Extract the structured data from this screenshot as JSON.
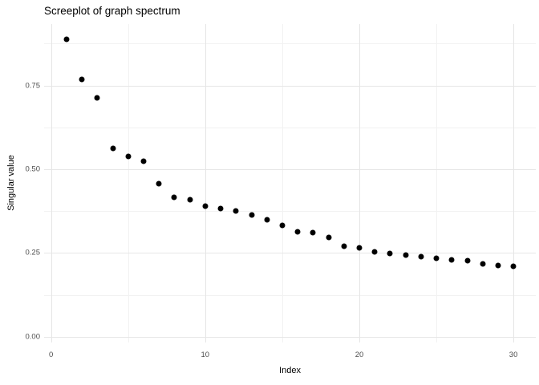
{
  "chart_data": {
    "type": "scatter",
    "title": "Screeplot of graph spectrum",
    "xlabel": "Index",
    "ylabel": "Singular value",
    "x": [
      1,
      2,
      3,
      4,
      5,
      6,
      7,
      8,
      9,
      10,
      11,
      12,
      13,
      14,
      15,
      16,
      17,
      18,
      19,
      20,
      21,
      22,
      23,
      24,
      25,
      26,
      27,
      28,
      29,
      30
    ],
    "values": [
      0.888,
      0.768,
      0.714,
      0.562,
      0.538,
      0.524,
      0.456,
      0.416,
      0.409,
      0.39,
      0.383,
      0.376,
      0.364,
      0.349,
      0.333,
      0.314,
      0.312,
      0.296,
      0.27,
      0.266,
      0.254,
      0.249,
      0.244,
      0.24,
      0.234,
      0.23,
      0.227,
      0.218,
      0.213,
      0.211
    ],
    "xlim": [
      -0.45,
      31.45
    ],
    "ylim": [
      -0.017,
      0.933
    ],
    "x_tick_values": [
      0,
      10,
      20,
      30
    ],
    "x_tick_labels": [
      "0",
      "10",
      "20",
      "30"
    ],
    "x_minor_ticks": [
      5,
      15,
      25
    ],
    "y_tick_values": [
      0.0,
      0.25,
      0.5,
      0.75
    ],
    "y_tick_labels": [
      "0.00",
      "0.25",
      "0.50",
      "0.75"
    ],
    "y_minor_ticks": [
      0.125,
      0.375,
      0.625,
      0.875
    ],
    "grid": true,
    "legend_position": "none",
    "point_color": "#000000",
    "grid_major_color": "#e6e6e6",
    "grid_minor_color": "#f2f2f2",
    "tick_label_color": "#4d4d4d",
    "text_color": "#000000",
    "background_color": "#ffffff"
  }
}
